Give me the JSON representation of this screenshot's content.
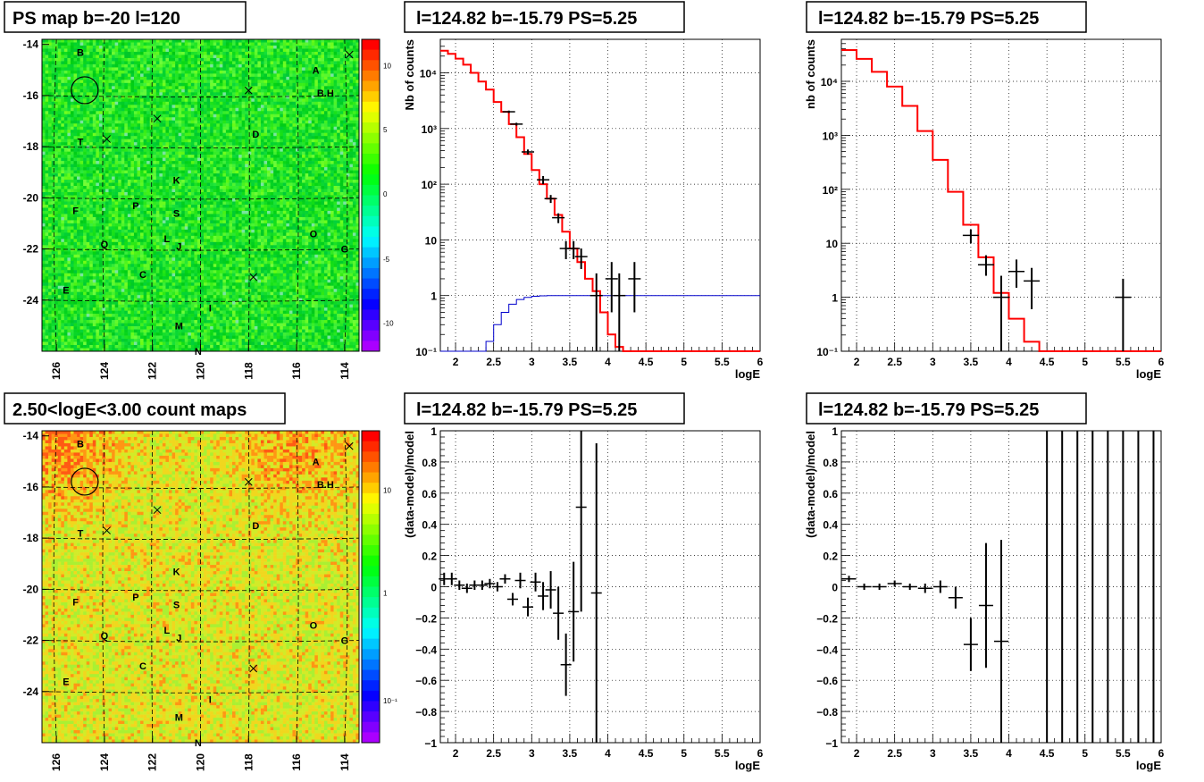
{
  "panels": {
    "map1_title": "PS map b=-20 l=120",
    "map2_title": "2.50<logE<3.00 count maps",
    "spec_title": "l=124.82 b=-15.79 PS=5.25"
  },
  "colors": {
    "model": "#ff0000",
    "exposure": "#0000cc",
    "data": "#000000",
    "map_green": "#19e619"
  },
  "maps": {
    "x_ticks": [
      "126",
      "124",
      "122",
      "120",
      "118",
      "116",
      "114"
    ],
    "y_ticks": [
      "-14",
      "-16",
      "-18",
      "-20",
      "-22",
      "-24"
    ],
    "letters": [
      {
        "t": "B",
        "l": 125.0,
        "b": -14.3
      },
      {
        "t": "A",
        "l": 115.2,
        "b": -15.0
      },
      {
        "t": "B.H",
        "l": 114.8,
        "b": -15.9
      },
      {
        "t": "D",
        "l": 117.7,
        "b": -17.5
      },
      {
        "t": "T",
        "l": 125.0,
        "b": -17.8
      },
      {
        "t": "K",
        "l": 121.0,
        "b": -19.3
      },
      {
        "t": "F",
        "l": 125.2,
        "b": -20.5
      },
      {
        "t": "P",
        "l": 122.7,
        "b": -20.3
      },
      {
        "t": "S",
        "l": 121.0,
        "b": -20.6
      },
      {
        "t": "O",
        "l": 115.3,
        "b": -21.4
      },
      {
        "t": "L",
        "l": 121.4,
        "b": -21.6
      },
      {
        "t": "J",
        "l": 120.9,
        "b": -21.9
      },
      {
        "t": "Q",
        "l": 124.0,
        "b": -21.8
      },
      {
        "t": "G",
        "l": 114.0,
        "b": -22.0
      },
      {
        "t": "C",
        "l": 122.4,
        "b": -23.0
      },
      {
        "t": "E",
        "l": 125.6,
        "b": -23.6
      },
      {
        "t": "I",
        "l": 119.6,
        "b": -24.3
      },
      {
        "t": "M",
        "l": 120.9,
        "b": -25.0
      },
      {
        "t": "N",
        "l": 120.1,
        "b": -26.0
      }
    ],
    "crosses": [
      [
        113.8,
        -14.4
      ],
      [
        118.0,
        -15.8
      ],
      [
        121.8,
        -16.9
      ],
      [
        123.9,
        -17.7
      ],
      [
        117.8,
        -23.1
      ]
    ],
    "circle": {
      "l": 124.82,
      "b": -15.79
    },
    "cb1_ticks": [
      "10",
      "5",
      "0",
      "-5",
      "-10"
    ],
    "cb2_ticks": [
      "10",
      "1",
      "10⁻¹"
    ]
  },
  "chart_data": [
    {
      "type": "step",
      "title": "l=124.82 b=-15.79 PS=5.25",
      "xlabel": "logE",
      "ylabel": "Nb of counts",
      "xlim": [
        1.8,
        6.0
      ],
      "ylim": [
        0.1,
        40000
      ],
      "yscale": "log",
      "grid": true,
      "x_ticks": [
        "2",
        "2.5",
        "3",
        "3.5",
        "4",
        "4.5",
        "5",
        "5.5",
        "6"
      ],
      "y_ticks": [
        "10⁻¹",
        "1",
        "10",
        "10²",
        "10³",
        "10⁴"
      ],
      "model_edges": [
        1.8,
        1.9,
        2.0,
        2.1,
        2.2,
        2.3,
        2.4,
        2.5,
        2.6,
        2.7,
        2.8,
        2.9,
        3.0,
        3.1,
        3.2,
        3.3,
        3.4,
        3.5,
        3.6,
        3.7,
        3.8,
        3.9,
        4.0,
        4.1,
        4.2,
        6.0
      ],
      "model_values": [
        25000,
        22000,
        18000,
        14000,
        10000,
        7000,
        5000,
        3000,
        2000,
        1200,
        700,
        350,
        180,
        100,
        55,
        28,
        14,
        7,
        4,
        2,
        1.2,
        0.5,
        0.2,
        0.12,
        0.1
      ],
      "exposure_edges": [
        1.8,
        2.4,
        2.5,
        2.6,
        2.7,
        2.8,
        2.9,
        3.0,
        3.1,
        3.2,
        3.3,
        3.4,
        6.0
      ],
      "exposure_values": [
        0.1,
        0.15,
        0.3,
        0.5,
        0.7,
        0.85,
        0.93,
        0.97,
        0.99,
        1.0,
        1.0,
        1.0
      ],
      "points": [
        {
          "x": 2.7,
          "y": 2000,
          "lo": 1900,
          "hi": 2100
        },
        {
          "x": 2.8,
          "y": 1200,
          "lo": 1130,
          "hi": 1270
        },
        {
          "x": 2.95,
          "y": 380,
          "lo": 340,
          "hi": 420
        },
        {
          "x": 3.15,
          "y": 120,
          "lo": 100,
          "hi": 140
        },
        {
          "x": 3.25,
          "y": 55,
          "lo": 46,
          "hi": 64
        },
        {
          "x": 3.35,
          "y": 25,
          "lo": 20,
          "hi": 30
        },
        {
          "x": 3.45,
          "y": 7,
          "lo": 4.5,
          "hi": 9.5
        },
        {
          "x": 3.55,
          "y": 7,
          "lo": 4.5,
          "hi": 9.5
        },
        {
          "x": 3.65,
          "y": 5,
          "lo": 3,
          "hi": 7
        },
        {
          "x": 3.85,
          "y": 1,
          "lo": 0.1,
          "hi": 2.5
        },
        {
          "x": 4.05,
          "y": 2,
          "lo": 0.5,
          "hi": 4
        },
        {
          "x": 4.15,
          "y": 1,
          "lo": 0.1,
          "hi": 2.5
        },
        {
          "x": 4.35,
          "y": 2,
          "lo": 0.5,
          "hi": 4
        }
      ]
    },
    {
      "type": "step",
      "title": "l=124.82 b=-15.79 PS=5.25",
      "xlabel": "logE",
      "ylabel": "nb of counts",
      "xlim": [
        1.8,
        6.0
      ],
      "ylim": [
        0.1,
        60000
      ],
      "yscale": "log",
      "grid": true,
      "x_ticks": [
        "2",
        "2.5",
        "3",
        "3.5",
        "4",
        "4.5",
        "5",
        "5.5",
        "6"
      ],
      "y_ticks": [
        "10⁻¹",
        "1",
        "10",
        "10²",
        "10³",
        "10⁴"
      ],
      "model_edges": [
        1.8,
        2.0,
        2.2,
        2.4,
        2.6,
        2.8,
        3.0,
        3.2,
        3.4,
        3.6,
        3.8,
        4.0,
        4.2,
        4.4,
        6.0
      ],
      "model_values": [
        38000,
        26000,
        15000,
        8000,
        3500,
        1200,
        350,
        90,
        22,
        5.5,
        1.2,
        0.4,
        0.15,
        0.1,
        0.1
      ],
      "points": [
        {
          "x": 3.5,
          "y": 14,
          "lo": 10,
          "hi": 18
        },
        {
          "x": 3.7,
          "y": 4,
          "lo": 2.5,
          "hi": 6
        },
        {
          "x": 3.9,
          "y": 1,
          "lo": 0.1,
          "hi": 2.5
        },
        {
          "x": 4.1,
          "y": 3,
          "lo": 1.5,
          "hi": 5
        },
        {
          "x": 4.3,
          "y": 2,
          "lo": 0.6,
          "hi": 3.5
        },
        {
          "x": 5.5,
          "y": 1,
          "lo": 0.1,
          "hi": 2.2
        }
      ]
    },
    {
      "type": "scatter",
      "title": "l=124.82 b=-15.79 PS=5.25",
      "xlabel": "logE",
      "ylabel": "(data-model)/model",
      "xlim": [
        1.8,
        6.0
      ],
      "ylim": [
        -1,
        1
      ],
      "grid": true,
      "x_ticks": [
        "2",
        "2.5",
        "3",
        "3.5",
        "4",
        "4.5",
        "5",
        "5.5",
        "6"
      ],
      "y_ticks": [
        "1",
        "0.8",
        "0.6",
        "0.4",
        "0.2",
        "0",
        "−0.2",
        "−0.4",
        "−0.6",
        "−0.8",
        "−1"
      ],
      "points": [
        {
          "x": 1.85,
          "y": 0.05,
          "e": 0.04
        },
        {
          "x": 1.95,
          "y": 0.05,
          "e": 0.04
        },
        {
          "x": 2.05,
          "y": 0.01,
          "e": 0.03
        },
        {
          "x": 2.15,
          "y": -0.01,
          "e": 0.03
        },
        {
          "x": 2.25,
          "y": 0.01,
          "e": 0.03
        },
        {
          "x": 2.35,
          "y": 0.01,
          "e": 0.03
        },
        {
          "x": 2.45,
          "y": 0.02,
          "e": 0.03
        },
        {
          "x": 2.55,
          "y": 0.0,
          "e": 0.03
        },
        {
          "x": 2.65,
          "y": 0.05,
          "e": 0.03
        },
        {
          "x": 2.75,
          "y": -0.08,
          "e": 0.04
        },
        {
          "x": 2.85,
          "y": 0.04,
          "e": 0.05
        },
        {
          "x": 2.95,
          "y": -0.13,
          "e": 0.06
        },
        {
          "x": 3.05,
          "y": 0.03,
          "e": 0.06
        },
        {
          "x": 3.15,
          "y": -0.06,
          "e": 0.09
        },
        {
          "x": 3.25,
          "y": -0.02,
          "e": 0.12
        },
        {
          "x": 3.35,
          "y": -0.17,
          "e": 0.17
        },
        {
          "x": 3.45,
          "y": -0.5,
          "e": 0.2
        },
        {
          "x": 3.55,
          "y": -0.16,
          "e": 0.32
        },
        {
          "x": 3.65,
          "y": 0.51,
          "e": 0.67
        },
        {
          "x": 3.85,
          "y": -0.04,
          "e": 0.96
        }
      ]
    },
    {
      "type": "scatter",
      "title": "l=124.82 b=-15.79 PS=5.25",
      "xlabel": "logE",
      "ylabel": "(data-model)/model",
      "xlim": [
        1.8,
        6.0
      ],
      "ylim": [
        -1,
        1
      ],
      "grid": true,
      "x_ticks": [
        "2",
        "2.5",
        "3",
        "3.5",
        "4",
        "4.5",
        "5",
        "5.5",
        "6"
      ],
      "y_ticks": [
        "1",
        "0.8",
        "0.6",
        "0.4",
        "0.2",
        "0",
        "−0.2",
        "−0.4",
        "−0.6",
        "−0.8",
        "−1"
      ],
      "points": [
        {
          "x": 1.9,
          "y": 0.05,
          "e": 0.02
        },
        {
          "x": 2.1,
          "y": 0.0,
          "e": 0.02
        },
        {
          "x": 2.3,
          "y": 0.0,
          "e": 0.02
        },
        {
          "x": 2.5,
          "y": 0.02,
          "e": 0.02
        },
        {
          "x": 2.7,
          "y": 0.0,
          "e": 0.02
        },
        {
          "x": 2.9,
          "y": -0.01,
          "e": 0.03
        },
        {
          "x": 3.1,
          "y": 0.0,
          "e": 0.04
        },
        {
          "x": 3.3,
          "y": -0.07,
          "e": 0.07
        },
        {
          "x": 3.5,
          "y": -0.37,
          "e": 0.17
        },
        {
          "x": 3.7,
          "y": -0.12,
          "e": 0.4
        },
        {
          "x": 3.9,
          "y": -0.35,
          "e": 0.65
        },
        {
          "x": 4.5,
          "y": 0,
          "e": 2
        },
        {
          "x": 4.7,
          "y": 0,
          "e": 2
        },
        {
          "x": 4.9,
          "y": 0,
          "e": 2
        },
        {
          "x": 5.1,
          "y": 0,
          "e": 2
        },
        {
          "x": 5.3,
          "y": 0,
          "e": 2
        },
        {
          "x": 5.5,
          "y": 0,
          "e": 2
        },
        {
          "x": 5.7,
          "y": 0,
          "e": 2
        },
        {
          "x": 5.9,
          "y": 0,
          "e": 2
        }
      ]
    }
  ]
}
